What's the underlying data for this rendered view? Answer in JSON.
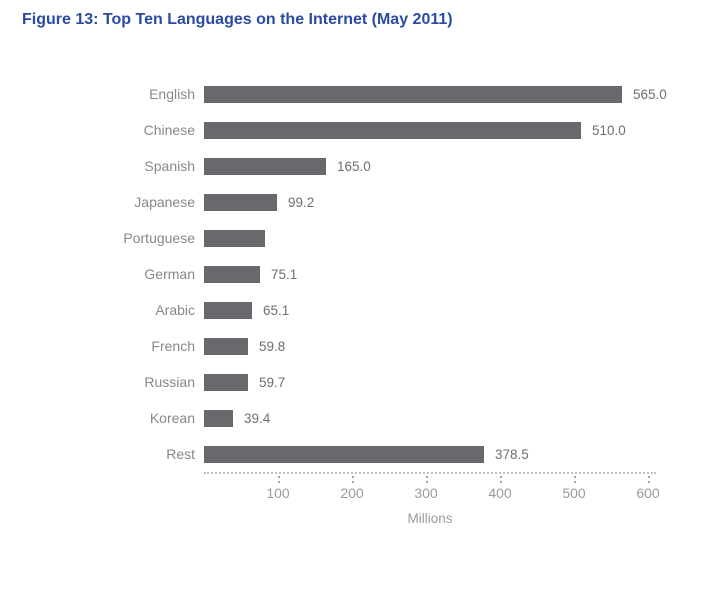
{
  "figure_title": "Figure 13: Top Ten Languages on the Internet (May 2011)",
  "chart_data": {
    "type": "bar",
    "orientation": "horizontal",
    "title": "Figure 13: Top Ten Languages on the Internet (May 2011)",
    "categories": [
      "English",
      "Chinese",
      "Spanish",
      "Japanese",
      "Portuguese",
      "German",
      "Arabic",
      "French",
      "Russian",
      "Korean",
      "Rest"
    ],
    "values": [
      565.0,
      510.0,
      165.0,
      99.2,
      82.6,
      75.1,
      65.1,
      59.8,
      59.7,
      39.4,
      378.5
    ],
    "data_labels": [
      "565.0",
      "510.0",
      "165.0",
      "99.2",
      "",
      "75.1",
      "65.1",
      "59.8",
      "59.7",
      "39.4",
      "378.5"
    ],
    "xlabel": "Millions",
    "ylabel": "",
    "x_ticks": [
      100,
      200,
      300,
      400,
      500,
      600
    ],
    "xlim": [
      0,
      610
    ],
    "grid": false,
    "legend": false,
    "bar_color": "#68686d",
    "value_label_note": "Portuguese bar has no visible value label; its value is estimated from the axis"
  },
  "colors": {
    "title": "#2b4aa2",
    "bar": "#68686d",
    "category_label": "#88888c",
    "value_label": "#6f6f73",
    "tick_label": "#9b9b9f",
    "axis_line": "#bfbfc3"
  }
}
